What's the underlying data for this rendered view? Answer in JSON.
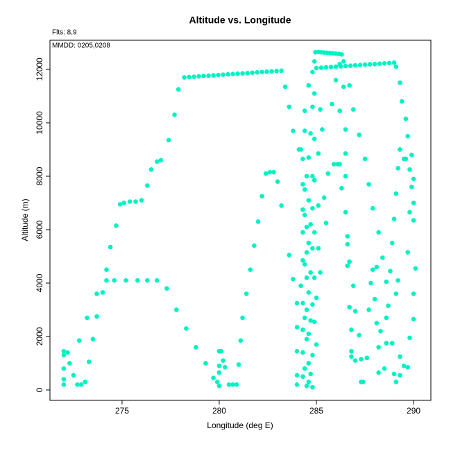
{
  "chart_data": {
    "type": "scatter",
    "title": "Altitude vs. Longitude",
    "subtitle": "Flts: 8,9",
    "annotation": "MMDD: 0205,0208",
    "x_label": "Longitude (deg E)",
    "y_label": "Altitude (m)",
    "color": "#00f2c3",
    "xlim": [
      271.29,
      290.89
    ],
    "ylim": [
      -390,
      13090
    ],
    "xticks": [
      275,
      280,
      285,
      290
    ],
    "yticks": [
      0,
      2000,
      4000,
      6000,
      8000,
      10000,
      12000
    ],
    "x": [
      272.0,
      272.0,
      272.2,
      272.0,
      272.0,
      272.0,
      272.3,
      272.5,
      272.7,
      272.9,
      273.1,
      273.3,
      273.2,
      272.8,
      273.5,
      273.7,
      273.7,
      274.0,
      274.2,
      274.2,
      274.6,
      275.2,
      275.8,
      276.3,
      276.8,
      277.3,
      277.8,
      278.3,
      278.8,
      279.3,
      279.7,
      279.9,
      280.0,
      280.0,
      280.1,
      280.0,
      280.0,
      280.2,
      280.3,
      280.5,
      280.7,
      280.9,
      281.0,
      281.1,
      281.2,
      281.4,
      281.6,
      281.8,
      282.0,
      282.2,
      282.4,
      282.6,
      282.8,
      283.0,
      283.2,
      274.4,
      274.7,
      274.9,
      275.1,
      275.4,
      275.7,
      276.0,
      276.3,
      276.5,
      276.8,
      277.0,
      277.4,
      277.7,
      277.9,
      278.2,
      278.45,
      278.7,
      278.95,
      279.2,
      279.45,
      279.7,
      279.95,
      280.2,
      280.45,
      280.7,
      280.95,
      281.2,
      281.45,
      281.7,
      281.95,
      282.2,
      282.45,
      282.7,
      282.95,
      283.2,
      283.4,
      283.6,
      283.8,
      283.6,
      283.8,
      284.0,
      284.0,
      284.0,
      284.0,
      284.0,
      284.1,
      284.2,
      284.2,
      284.3,
      284.3,
      284.3,
      284.3,
      284.3,
      284.3,
      284.3,
      284.3,
      284.3,
      284.4,
      284.4,
      284.4,
      284.4,
      284.4,
      284.4,
      284.4,
      284.5,
      284.5,
      284.5,
      284.5,
      284.5,
      284.5,
      284.5,
      284.6,
      284.6,
      284.6,
      284.6,
      284.6,
      284.6,
      284.6,
      284.6,
      284.7,
      284.7,
      284.7,
      284.7,
      284.7,
      284.8,
      284.8,
      284.8,
      284.8,
      284.8,
      284.8,
      284.8,
      284.8,
      284.9,
      284.9,
      284.9,
      284.9,
      284.9,
      284.9,
      284.9,
      285.0,
      285.0,
      285.1,
      285.1,
      285.1,
      285.2,
      285.2,
      285.3,
      285.4,
      285.5,
      285.6,
      285.8,
      285.9,
      286.0,
      286.1,
      286.2,
      286.2,
      286.3,
      286.4,
      286.5,
      286.5,
      286.5,
      286.5,
      286.6,
      286.6,
      286.6,
      286.7,
      286.7,
      286.7,
      286.8,
      286.8,
      286.8,
      286.9,
      286.9,
      287.0,
      287.0,
      287.2,
      287.2,
      287.3,
      287.3,
      287.4,
      287.5,
      287.6,
      287.7,
      287.7,
      287.8,
      287.9,
      287.9,
      288.0,
      288.1,
      288.1,
      288.2,
      288.2,
      288.2,
      288.3,
      288.4,
      288.5,
      288.6,
      288.6,
      288.6,
      288.7,
      288.8,
      288.9,
      288.9,
      289.0,
      289.0,
      289.1,
      289.1,
      289.1,
      289.2,
      289.2,
      289.3,
      289.4,
      289.5,
      289.6,
      289.6,
      289.7,
      289.7,
      289.7,
      289.8,
      289.8,
      289.8,
      289.9,
      289.9,
      290.0,
      290.0,
      290.0,
      290.0,
      290.0,
      290.1,
      289.3,
      289.3,
      289.5,
      285.0,
      285.25,
      285.5,
      285.75,
      286.0,
      286.25,
      286.5,
      286.75,
      287.0,
      287.25,
      287.5,
      287.75,
      288.0,
      288.25,
      288.5,
      288.75,
      289.0,
      284.95,
      285.1,
      285.25,
      285.4,
      285.55,
      285.7,
      285.85,
      286.0,
      286.15,
      286.3,
      286.4,
      289.1,
      289.3,
      286.2
    ],
    "values": [
      1450,
      1300,
      1400,
      800,
      400,
      200,
      1000,
      550,
      200,
      200,
      300,
      1050,
      2700,
      1850,
      1900,
      2750,
      3600,
      3650,
      4100,
      4500,
      4100,
      4100,
      4100,
      4100,
      4100,
      3800,
      3000,
      2300,
      1600,
      1000,
      450,
      300,
      150,
      1450,
      1450,
      900,
      650,
      1100,
      850,
      200,
      200,
      200,
      950,
      1850,
      2700,
      3600,
      4500,
      5400,
      6300,
      7250,
      8100,
      8150,
      8150,
      7800,
      6900,
      5350,
      6150,
      6950,
      7000,
      7050,
      7050,
      7100,
      7650,
      8250,
      8550,
      8600,
      9350,
      10300,
      11250,
      11700,
      11712,
      11725,
      11738,
      11750,
      11762,
      11775,
      11788,
      11800,
      11812,
      11825,
      11838,
      11850,
      11862,
      11875,
      11888,
      11900,
      11912,
      11925,
      11938,
      11950,
      11350,
      10600,
      9700,
      5050,
      4150,
      3250,
      2350,
      1450,
      550,
      200,
      9000,
      9000,
      3900,
      8650,
      7700,
      6750,
      5900,
      4850,
      3250,
      2250,
      1400,
      500,
      10450,
      9700,
      7500,
      6550,
      4700,
      2700,
      800,
      8000,
      6100,
      5150,
      4200,
      3000,
      1900,
      150,
      11400,
      8700,
      7100,
      5500,
      3650,
      2100,
      1000,
      300,
      9600,
      6200,
      4400,
      2600,
      600,
      11900,
      10600,
      8000,
      6800,
      5300,
      3200,
      1300,
      100,
      12300,
      11100,
      9400,
      7850,
      5900,
      4200,
      2550,
      3450,
      1700,
      8850,
      6900,
      5300,
      10500,
      4400,
      9750,
      7200,
      6250,
      8100,
      10700,
      8450,
      11600,
      8450,
      8450,
      10450,
      7550,
      11350,
      9750,
      8850,
      8000,
      6650,
      5750,
      5450,
      4650,
      11400,
      4800,
      3100,
      2250,
      1450,
      1250,
      3900,
      10500,
      2950,
      1100,
      2050,
      9550,
      1150,
      300,
      300,
      8650,
      1200,
      3000,
      7700,
      4000,
      4500,
      6800,
      3400,
      4600,
      2500,
      5900,
      1600,
      650,
      2200,
      4950,
      800,
      1750,
      2700,
      4050,
      3150,
      4450,
      1750,
      5500,
      6400,
      600,
      3600,
      300,
      7350,
      4100,
      8300,
      9000,
      10800,
      8650,
      10150,
      8650,
      9500,
      5150,
      850,
      1950,
      6650,
      8250,
      8800,
      7600,
      7900,
      6350,
      3600,
      2650,
      7000,
      4550,
      550,
      1250,
      900,
      12050,
      12062,
      12075,
      12088,
      12100,
      12112,
      12125,
      12138,
      12150,
      12162,
      12175,
      12188,
      12200,
      12212,
      12225,
      12238,
      12250,
      12640,
      12650,
      12640,
      12630,
      12620,
      12610,
      12600,
      12590,
      12580,
      12560,
      12300,
      12100,
      11500,
      12200
    ]
  }
}
